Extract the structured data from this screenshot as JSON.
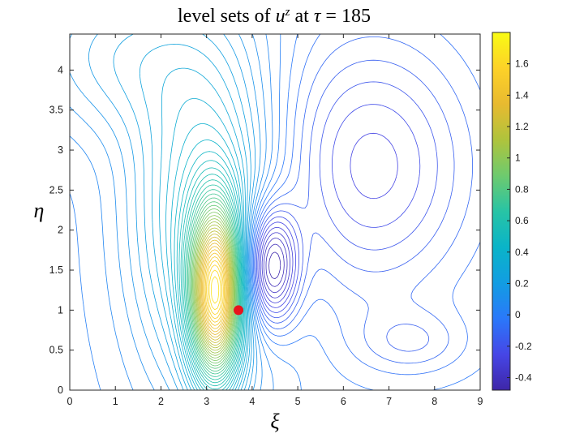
{
  "chart_data": {
    "type": "contour",
    "title": {
      "prefix": "level sets of ",
      "var": "u",
      "sup": "z",
      "mid": " at ",
      "var2": "τ",
      "suffix": " = 185"
    },
    "xlabel": "ξ",
    "ylabel": "η",
    "xlim": [
      0,
      9
    ],
    "ylim": [
      0,
      4.45
    ],
    "xticks": [
      0,
      1,
      2,
      3,
      4,
      5,
      6,
      7,
      8,
      9
    ],
    "yticks": [
      0,
      0.5,
      1,
      1.5,
      2,
      2.5,
      3,
      3.5,
      4
    ],
    "grid": false,
    "colormap": "parula",
    "colorbar": {
      "range": [
        -0.48,
        1.8
      ],
      "ticks": [
        -0.4,
        -0.2,
        0,
        0.2,
        0.4,
        0.6,
        0.8,
        1,
        1.2,
        1.4,
        1.6
      ],
      "position": "right"
    },
    "marker": {
      "x": 3.7,
      "y": 1.0,
      "color": "#e8141c"
    },
    "features": {
      "maximum": {
        "x": 3.2,
        "y": 1.2,
        "value": 1.8
      },
      "minimum": {
        "x": 4.4,
        "y": 1.55,
        "value": -0.48
      },
      "level_step": 0.04
    }
  }
}
